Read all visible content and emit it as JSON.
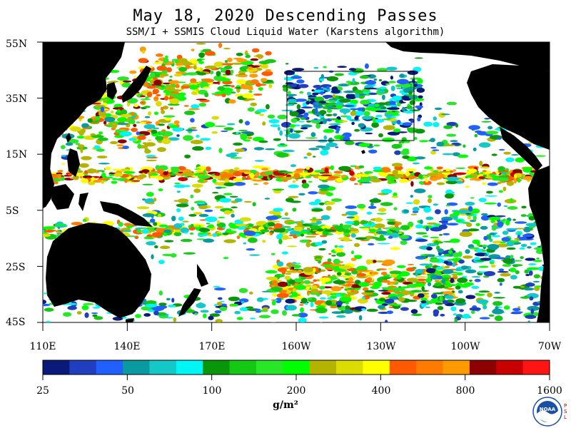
{
  "header": {
    "title": "May 18, 2020  Descending Passes",
    "subtitle": "SSM/I + SSMIS Cloud Liquid Water (Karstens algorithm)"
  },
  "map": {
    "lat_labels": [
      "55N",
      "35N",
      "15N",
      "5S",
      "25S",
      "45S"
    ],
    "lon_labels": [
      "110E",
      "140E",
      "170E",
      "160W",
      "130W",
      "100W",
      "70W"
    ],
    "land_color": "#000000",
    "ocean_no_data_color": "#ffffff",
    "highlight_box_color": "#000000"
  },
  "colorbar": {
    "colors": [
      "#0a1a7a",
      "#1f3fbf",
      "#1f60ff",
      "#0a9aa0",
      "#14c8c8",
      "#00f5f5",
      "#0a960a",
      "#14c814",
      "#28e628",
      "#00ff00",
      "#b4b400",
      "#dcdc00",
      "#ffff00",
      "#ff5a00",
      "#ff7a00",
      "#ff9a00",
      "#8c0000",
      "#c80000",
      "#ff1414"
    ],
    "tick_labels": [
      "25",
      "50",
      "100",
      "200",
      "400",
      "800",
      "1600"
    ],
    "units": "g/m²"
  },
  "logo": {
    "name": "noaa-logo",
    "text": "NOAA",
    "side_text": "PSL"
  }
}
